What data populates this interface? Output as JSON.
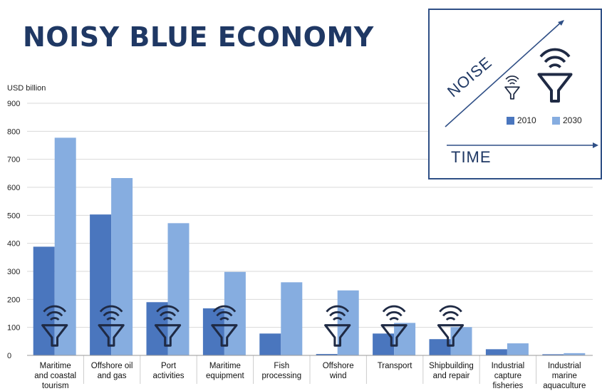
{
  "title": "NOISY BLUE ECONOMY",
  "colors": {
    "s2010": "#4a76be",
    "s2030": "#86ade0",
    "title": "#1f3864",
    "icon": "#1f2a44"
  },
  "legend_panel": {
    "noise_label": "NOISE",
    "time_label": "TIME",
    "icons": [
      "noise-funnel-small-icon",
      "noise-funnel-large-icon"
    ]
  },
  "chart_data": {
    "type": "bar",
    "ylabel": "USD billion",
    "ylim": [
      0,
      900
    ],
    "yticks": [
      0,
      100,
      200,
      300,
      400,
      500,
      600,
      700,
      800,
      900
    ],
    "grid": true,
    "legend_position": "top-right",
    "categories": [
      [
        "Maritime",
        "and coastal",
        "tourism"
      ],
      [
        "Offshore oil",
        "and gas"
      ],
      [
        "Port",
        "activities"
      ],
      [
        "Maritime",
        "equipment"
      ],
      [
        "Fish",
        "processing"
      ],
      [
        "Offshore",
        "wind"
      ],
      [
        "Transport"
      ],
      [
        "Shipbuilding",
        "and repair"
      ],
      [
        "Industrial",
        "capture",
        "fisheries"
      ],
      [
        "Industrial",
        "marine",
        "aquaculture"
      ]
    ],
    "series": [
      {
        "name": "2010",
        "values": [
          388,
          503,
          190,
          168,
          78,
          5,
          78,
          58,
          22,
          4
        ]
      },
      {
        "name": "2030",
        "values": [
          777,
          633,
          472,
          298,
          261,
          232,
          116,
          101,
          43,
          8
        ]
      }
    ],
    "noise_icon_on": [
      true,
      true,
      true,
      true,
      false,
      true,
      true,
      true,
      false,
      false
    ]
  }
}
